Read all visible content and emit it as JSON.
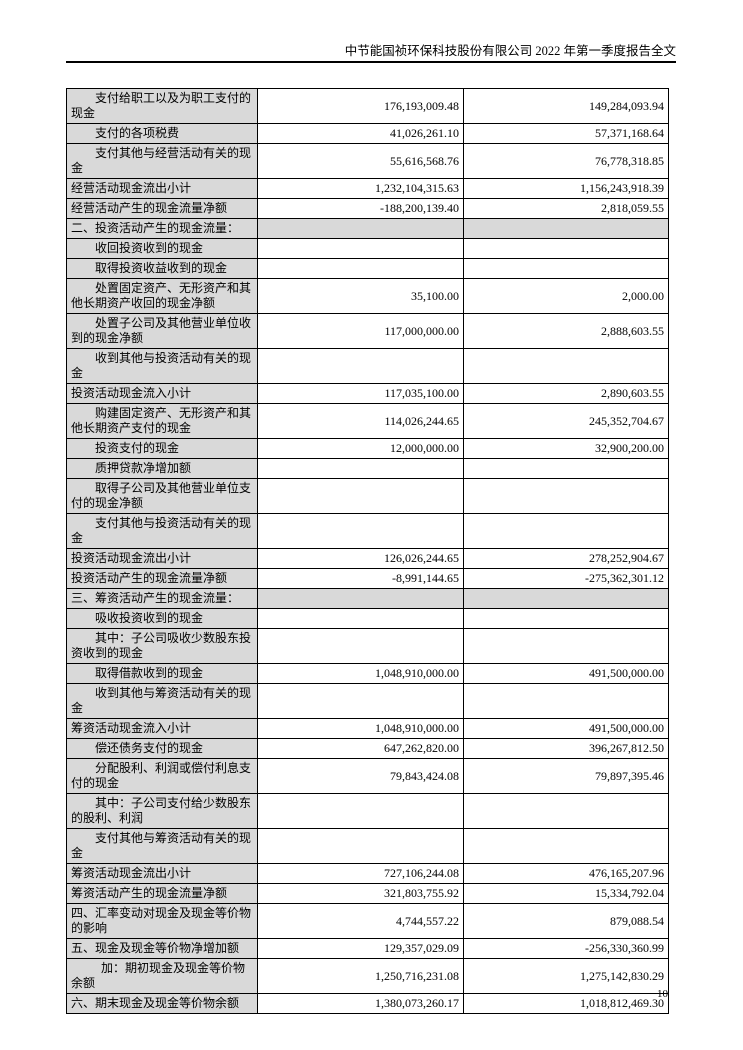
{
  "header": {
    "title": "中节能国祯环保科技股份有限公司 2022 年第一季度报告全文"
  },
  "footer": {
    "page_number": "10"
  },
  "colors": {
    "row_shade": "#d9d9d9",
    "border": "#000000",
    "text": "#000000"
  },
  "table": {
    "rows": [
      {
        "label": "支付给职工以及为职工支付的现金",
        "current": "176,193,009.48",
        "prior": "149,284,093.94",
        "indent": 1,
        "section": false
      },
      {
        "label": "支付的各项税费",
        "current": "41,026,261.10",
        "prior": "57,371,168.64",
        "indent": 1,
        "section": false
      },
      {
        "label": "支付其他与经营活动有关的现金",
        "current": "55,616,568.76",
        "prior": "76,778,318.85",
        "indent": 1,
        "section": false
      },
      {
        "label": "经营活动现金流出小计",
        "current": "1,232,104,315.63",
        "prior": "1,156,243,918.39",
        "indent": 0,
        "section": false
      },
      {
        "label": "经营活动产生的现金流量净额",
        "current": "-188,200,139.40",
        "prior": "2,818,059.55",
        "indent": 0,
        "section": false
      },
      {
        "label": "二、投资活动产生的现金流量：",
        "current": "",
        "prior": "",
        "indent": 0,
        "section": true
      },
      {
        "label": "收回投资收到的现金",
        "current": "",
        "prior": "",
        "indent": 1,
        "section": false
      },
      {
        "label": "取得投资收益收到的现金",
        "current": "",
        "prior": "",
        "indent": 1,
        "section": false
      },
      {
        "label": "处置固定资产、无形资产和其他长期资产收回的现金净额",
        "current": "35,100.00",
        "prior": "2,000.00",
        "indent": 1,
        "section": false
      },
      {
        "label": "处置子公司及其他营业单位收到的现金净额",
        "current": "117,000,000.00",
        "prior": "2,888,603.55",
        "indent": 1,
        "section": false
      },
      {
        "label": "收到其他与投资活动有关的现金",
        "current": "",
        "prior": "",
        "indent": 1,
        "section": false
      },
      {
        "label": "投资活动现金流入小计",
        "current": "117,035,100.00",
        "prior": "2,890,603.55",
        "indent": 0,
        "section": false
      },
      {
        "label": "购建固定资产、无形资产和其他长期资产支付的现金",
        "current": "114,026,244.65",
        "prior": "245,352,704.67",
        "indent": 1,
        "section": false
      },
      {
        "label": "投资支付的现金",
        "current": "12,000,000.00",
        "prior": "32,900,200.00",
        "indent": 1,
        "section": false
      },
      {
        "label": "质押贷款净增加额",
        "current": "",
        "prior": "",
        "indent": 1,
        "section": false
      },
      {
        "label": "取得子公司及其他营业单位支付的现金净额",
        "current": "",
        "prior": "",
        "indent": 1,
        "section": false
      },
      {
        "label": "支付其他与投资活动有关的现金",
        "current": "",
        "prior": "",
        "indent": 1,
        "section": false
      },
      {
        "label": "投资活动现金流出小计",
        "current": "126,026,244.65",
        "prior": "278,252,904.67",
        "indent": 0,
        "section": false
      },
      {
        "label": "投资活动产生的现金流量净额",
        "current": "-8,991,144.65",
        "prior": "-275,362,301.12",
        "indent": 0,
        "section": false
      },
      {
        "label": "三、筹资活动产生的现金流量：",
        "current": "",
        "prior": "",
        "indent": 0,
        "section": true
      },
      {
        "label": "吸收投资收到的现金",
        "current": "",
        "prior": "",
        "indent": 1,
        "section": false
      },
      {
        "label": "其中：子公司吸收少数股东投资收到的现金",
        "current": "",
        "prior": "",
        "indent": 1,
        "section": false
      },
      {
        "label": "取得借款收到的现金",
        "current": "1,048,910,000.00",
        "prior": "491,500,000.00",
        "indent": 1,
        "section": false
      },
      {
        "label": "收到其他与筹资活动有关的现金",
        "current": "",
        "prior": "",
        "indent": 1,
        "section": false
      },
      {
        "label": "筹资活动现金流入小计",
        "current": "1,048,910,000.00",
        "prior": "491,500,000.00",
        "indent": 0,
        "section": false
      },
      {
        "label": "偿还债务支付的现金",
        "current": "647,262,820.00",
        "prior": "396,267,812.50",
        "indent": 1,
        "section": false
      },
      {
        "label": "分配股利、利润或偿付利息支付的现金",
        "current": "79,843,424.08",
        "prior": "79,897,395.46",
        "indent": 1,
        "section": false
      },
      {
        "label": "其中：子公司支付给少数股东的股利、利润",
        "current": "",
        "prior": "",
        "indent": 1,
        "section": false
      },
      {
        "label": "支付其他与筹资活动有关的现金",
        "current": "",
        "prior": "",
        "indent": 1,
        "section": false
      },
      {
        "label": "筹资活动现金流出小计",
        "current": "727,106,244.08",
        "prior": "476,165,207.96",
        "indent": 0,
        "section": false
      },
      {
        "label": "筹资活动产生的现金流量净额",
        "current": "321,803,755.92",
        "prior": "15,334,792.04",
        "indent": 0,
        "section": false
      },
      {
        "label": "四、汇率变动对现金及现金等价物的影响",
        "current": "4,744,557.22",
        "prior": "879,088.54",
        "indent": 0,
        "section": false
      },
      {
        "label": "五、现金及现金等价物净增加额",
        "current": "129,357,029.09",
        "prior": "-256,330,360.99",
        "indent": 0,
        "section": false
      },
      {
        "label": "加：期初现金及现金等价物余额",
        "current": "1,250,716,231.08",
        "prior": "1,275,142,830.29",
        "indent": 2,
        "section": false
      },
      {
        "label": "六、期末现金及现金等价物余额",
        "current": "1,380,073,260.17",
        "prior": "1,018,812,469.30",
        "indent": 0,
        "section": false
      }
    ]
  }
}
